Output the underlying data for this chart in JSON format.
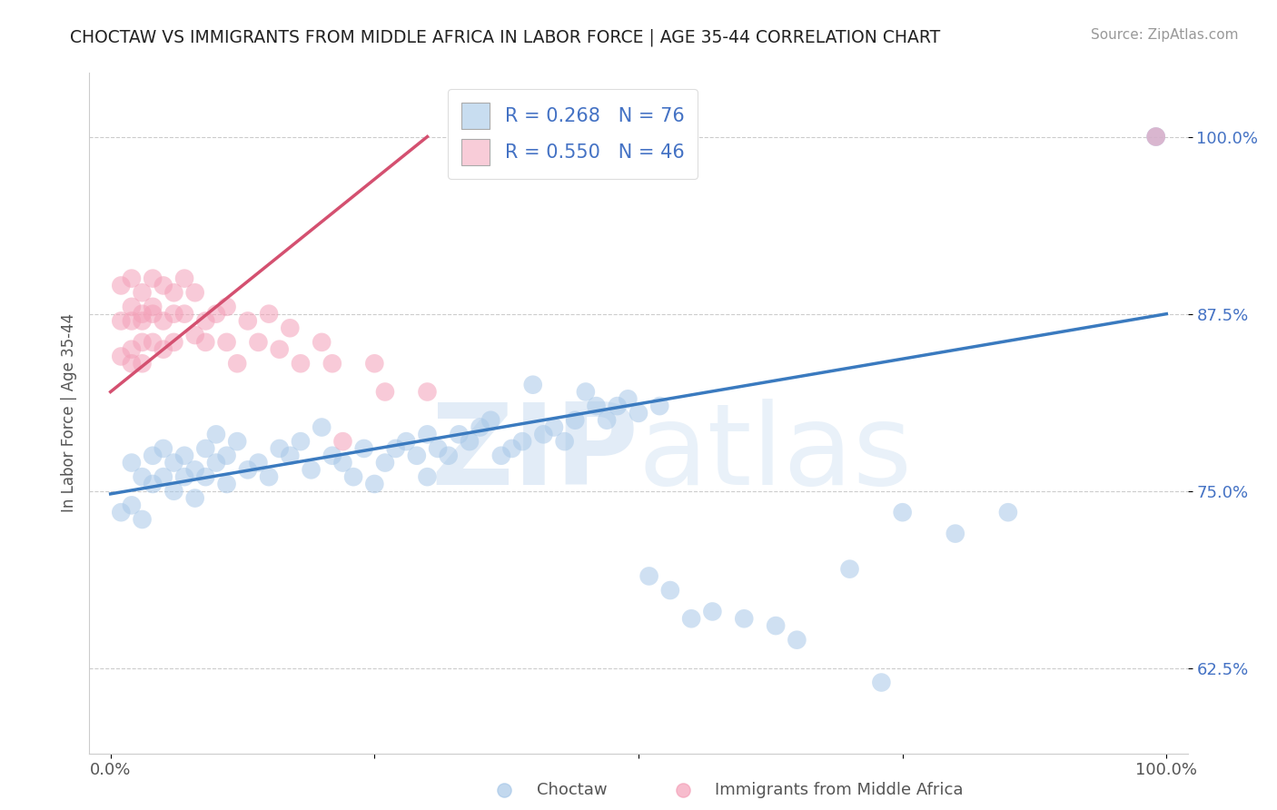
{
  "title": "CHOCTAW VS IMMIGRANTS FROM MIDDLE AFRICA IN LABOR FORCE | AGE 35-44 CORRELATION CHART",
  "source_text": "Source: ZipAtlas.com",
  "ylabel": "In Labor Force | Age 35-44",
  "legend_label1": "Choctaw",
  "legend_label2": "Immigrants from Middle Africa",
  "R1": 0.268,
  "N1": 76,
  "R2": 0.55,
  "N2": 46,
  "watermark": "ZIPatlas",
  "xlim": [
    -0.02,
    1.02
  ],
  "ylim": [
    0.565,
    1.045
  ],
  "x_ticks": [
    0.0,
    0.25,
    0.5,
    0.75,
    1.0
  ],
  "x_tick_labels": [
    "0.0%",
    "",
    "",
    "",
    "100.0%"
  ],
  "y_ticks": [
    0.625,
    0.75,
    0.875,
    1.0
  ],
  "y_tick_labels": [
    "62.5%",
    "75.0%",
    "87.5%",
    "100.0%"
  ],
  "color_blue": "#a8c8e8",
  "color_pink": "#f4a0b8",
  "line_color_blue": "#3a7abf",
  "line_color_pink": "#d45070",
  "background_color": "#ffffff",
  "legend_box_color1": "#c8ddf0",
  "legend_box_color2": "#f8ccd8",
  "blue_line_x0": 0.0,
  "blue_line_y0": 0.748,
  "blue_line_x1": 1.0,
  "blue_line_y1": 0.875,
  "pink_line_x0": 0.0,
  "pink_line_y0": 0.82,
  "pink_line_x1": 0.3,
  "pink_line_y1": 1.0
}
